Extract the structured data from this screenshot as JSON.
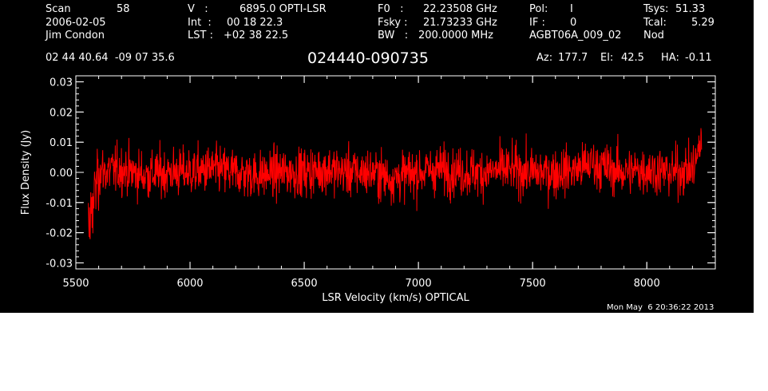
{
  "header": {
    "col1": {
      "scan_label": "Scan",
      "scan_value": "58",
      "date": "2006-02-05",
      "observer": "Jim Condon"
    },
    "col2": {
      "v_label": "V   :",
      "v_value": "6895.0 OPTI-LSR",
      "int_label": "Int  :",
      "int_value": "00 18 22.3",
      "lst_label": "LST :",
      "lst_value": "+02 38 22.5"
    },
    "col3": {
      "f0_label": "F0   :",
      "f0_value": "22.23508 GHz",
      "fsky_label": "Fsky :",
      "fsky_value": "21.73233 GHz",
      "bw_label": "BW   :",
      "bw_value": "200.0000 MHz"
    },
    "col4": {
      "pol_label": "Pol:",
      "pol_value": "I",
      "if_label": "IF :",
      "if_value": "0",
      "project": "AGBT06A_009_02"
    },
    "col5": {
      "tsys_label": "Tsys:",
      "tsys_value": "51.33",
      "tcal_label": "Tcal:",
      "tcal_value": "5.29",
      "mode": "Nod"
    },
    "coords": "02 44 40.64  -09 07 35.6",
    "source": "024440-090735",
    "az_label": "Az:",
    "az_value": "177.7",
    "el_label": "El:",
    "el_value": "42.5",
    "ha_label": "HA:",
    "ha_value": "-0.11"
  },
  "timestamp": "Mon May  6 20:36:22 2013",
  "colors": {
    "background": "#000000",
    "trace": "#ff0000",
    "axes": "#ffffff"
  },
  "chart_data": {
    "type": "line",
    "xlabel": "LSR Velocity (km/s) OPTICAL",
    "ylabel": "Flux Density (Jy)",
    "xlim": [
      5500,
      8300
    ],
    "ylim": [
      -0.032,
      0.032
    ],
    "x_ticks": [
      5500,
      6000,
      6500,
      7000,
      7500,
      8000
    ],
    "x_tick_labels": [
      "5500",
      "6000",
      "6500",
      "7000",
      "7500",
      "8000"
    ],
    "y_ticks": [
      -0.03,
      -0.02,
      -0.01,
      0.0,
      0.01,
      0.02,
      0.03
    ],
    "y_tick_labels": [
      "-0.03",
      "-0.02",
      "-0.01",
      "0.00",
      "0.01",
      "0.02",
      "0.03"
    ],
    "grid": false,
    "series": [
      {
        "x": [
          5555,
          5580,
          5600,
          5700,
          5800,
          5900,
          6000,
          6100,
          6200,
          6300,
          6400,
          6500,
          6600,
          6700,
          6800,
          6880,
          7000,
          7100,
          7200,
          7300,
          7400,
          7500,
          7600,
          7700,
          7760,
          7800,
          7900,
          8000,
          8100,
          8200,
          8225,
          8240
        ],
        "y": [
          -0.02,
          -0.008,
          0.0,
          0.001,
          -0.001,
          0.0,
          0.0,
          0.001,
          0.0,
          -0.001,
          0.0,
          0.0,
          0.001,
          0.0,
          0.0,
          -0.002,
          0.0,
          0.001,
          0.0,
          0.0,
          0.001,
          0.0,
          0.0,
          0.001,
          0.003,
          0.002,
          0.0,
          0.001,
          0.0,
          0.001,
          0.006,
          0.012
        ],
        "noise_rms_jy": 0.005
      }
    ]
  }
}
